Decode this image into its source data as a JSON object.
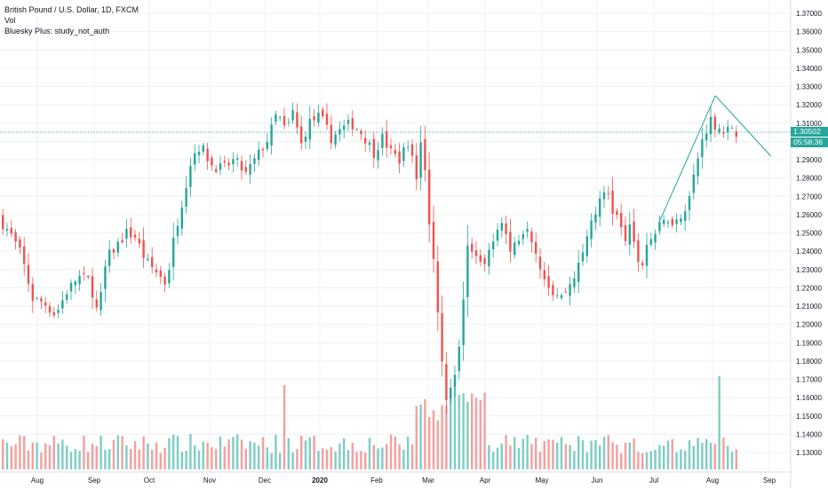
{
  "legend": {
    "symbol": "British Pound / U.S. Dollar, 1D, FXCM",
    "volume": "Vol",
    "study": "Bluesky Plus: study_not_auth"
  },
  "price_tag": {
    "last": "1.30502",
    "countdown": "05:58:36"
  },
  "colors": {
    "up": "#26a69a",
    "down": "#ef5350",
    "vol_up": "#7fcdc5",
    "vol_down": "#f3a09e",
    "grid": "#eef0f3",
    "line": "#26a69a"
  },
  "chart_data": {
    "type": "candlestick",
    "y_ticks": [
      "1.37000",
      "1.36000",
      "1.35000",
      "1.34000",
      "1.33000",
      "1.32000",
      "1.31000",
      "1.30000",
      "1.29000",
      "1.28000",
      "1.27000",
      "1.26000",
      "1.25000",
      "1.24000",
      "1.23000",
      "1.22000",
      "1.21000",
      "1.20000",
      "1.19000",
      "1.18000",
      "1.17000",
      "1.16000",
      "1.15000",
      "1.14000",
      "1.13000"
    ],
    "x_ticks": [
      {
        "label": "Aug",
        "bold": false
      },
      {
        "label": "Sep",
        "bold": false
      },
      {
        "label": "Oct",
        "bold": false
      },
      {
        "label": "Nov",
        "bold": false
      },
      {
        "label": "Dec",
        "bold": false
      },
      {
        "label": "2020",
        "bold": true
      },
      {
        "label": "Feb",
        "bold": false
      },
      {
        "label": "Mar",
        "bold": false
      },
      {
        "label": "Apr",
        "bold": false
      },
      {
        "label": "May",
        "bold": false
      },
      {
        "label": "Jun",
        "bold": false
      },
      {
        "label": "Jul",
        "bold": false
      },
      {
        "label": "Aug",
        "bold": false
      },
      {
        "label": "Sep",
        "bold": false
      }
    ],
    "ylim": [
      1.125,
      1.375
    ],
    "last_price": 1.30502,
    "close_path": [
      [
        0,
        1.258
      ],
      [
        8,
        1.25
      ],
      [
        16,
        1.238
      ],
      [
        24,
        1.214
      ],
      [
        32,
        1.212
      ],
      [
        40,
        1.205
      ],
      [
        48,
        1.218
      ],
      [
        56,
        1.226
      ],
      [
        64,
        1.224
      ],
      [
        70,
        1.205
      ],
      [
        76,
        1.236
      ],
      [
        84,
        1.244
      ],
      [
        90,
        1.25
      ],
      [
        96,
        1.248
      ],
      [
        104,
        1.234
      ],
      [
        112,
        1.228
      ],
      [
        118,
        1.222
      ],
      [
        124,
        1.25
      ],
      [
        130,
        1.27
      ],
      [
        136,
        1.292
      ],
      [
        142,
        1.298
      ],
      [
        150,
        1.287
      ],
      [
        158,
        1.285
      ],
      [
        166,
        1.29
      ],
      [
        174,
        1.282
      ],
      [
        182,
        1.292
      ],
      [
        190,
        1.302
      ],
      [
        196,
        1.316
      ],
      [
        202,
        1.305
      ],
      [
        208,
        1.318
      ],
      [
        212,
        1.296
      ],
      [
        218,
        1.31
      ],
      [
        226,
        1.314
      ],
      [
        234,
        1.302
      ],
      [
        240,
        1.306
      ],
      [
        248,
        1.31
      ],
      [
        256,
        1.304
      ],
      [
        264,
        1.294
      ],
      [
        270,
        1.302
      ],
      [
        276,
        1.294
      ],
      [
        282,
        1.29
      ],
      [
        288,
        1.3
      ],
      [
        294,
        1.28
      ],
      [
        298,
        1.308
      ],
      [
        302,
        1.26
      ],
      [
        306,
        1.235
      ],
      [
        310,
        1.2
      ],
      [
        314,
        1.158
      ],
      [
        318,
        1.165
      ],
      [
        322,
        1.178
      ],
      [
        326,
        1.2
      ],
      [
        330,
        1.245
      ],
      [
        336,
        1.24
      ],
      [
        342,
        1.232
      ],
      [
        348,
        1.248
      ],
      [
        354,
        1.258
      ],
      [
        360,
        1.24
      ],
      [
        366,
        1.248
      ],
      [
        372,
        1.255
      ],
      [
        378,
        1.24
      ],
      [
        384,
        1.226
      ],
      [
        390,
        1.218
      ],
      [
        396,
        1.215
      ],
      [
        402,
        1.222
      ],
      [
        410,
        1.235
      ],
      [
        416,
        1.255
      ],
      [
        422,
        1.265
      ],
      [
        428,
        1.275
      ],
      [
        432,
        1.262
      ],
      [
        436,
        1.258
      ],
      [
        440,
        1.245
      ],
      [
        444,
        1.252
      ],
      [
        448,
        1.24
      ],
      [
        452,
        1.23
      ],
      [
        456,
        1.244
      ],
      [
        462,
        1.25
      ],
      [
        470,
        1.258
      ],
      [
        478,
        1.256
      ],
      [
        486,
        1.27
      ],
      [
        494,
        1.298
      ],
      [
        500,
        1.312
      ],
      [
        506,
        1.308
      ],
      [
        512,
        1.306
      ],
      [
        516,
        1.305
      ]
    ],
    "trendlines": [
      {
        "x": [
          462,
          502
        ],
        "y": [
          1.255,
          1.325
        ]
      },
      {
        "x": [
          502,
          541
        ],
        "y": [
          1.325,
          1.292
        ]
      }
    ]
  }
}
